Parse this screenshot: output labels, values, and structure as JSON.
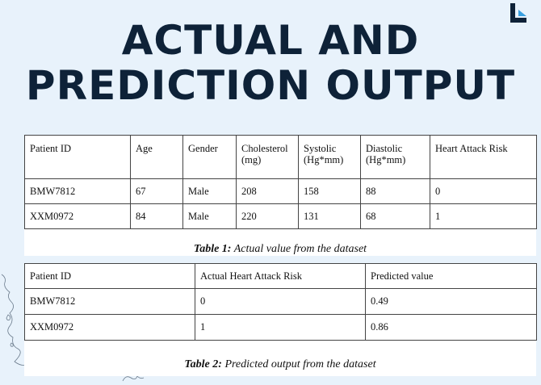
{
  "title_line1": "ACTUAL AND",
  "title_line2": "PREDICTION OUTPUT",
  "colors": {
    "title": "#0e2238",
    "background": "#e8f2fb",
    "logo": "#0e2238",
    "logo_accent": "#3aa0e0"
  },
  "table1": {
    "headers": [
      [
        "Patient ID"
      ],
      [
        "Age"
      ],
      [
        "Gender"
      ],
      [
        "Cholesterol",
        "(mg)"
      ],
      [
        "Systolic",
        "(Hg*mm)"
      ],
      [
        "Diastolic",
        "(Hg*mm)"
      ],
      [
        "Heart Attack Risk"
      ]
    ],
    "rows": [
      [
        "BMW7812",
        "67",
        "Male",
        "208",
        "158",
        "88",
        "0"
      ],
      [
        "XXM0972",
        "84",
        "Male",
        "220",
        "131",
        "68",
        "1"
      ]
    ],
    "caption_label": "Table 1:",
    "caption_text": " Actual value from the dataset"
  },
  "table2": {
    "headers": [
      "Patient ID",
      "Actual Heart Attack Risk",
      "Predicted value"
    ],
    "rows": [
      [
        "BMW7812",
        "0",
        "0.49"
      ],
      [
        "XXM0972",
        "1",
        "0.86"
      ]
    ],
    "caption_label": "Table 2:",
    "caption_text": " Predicted output from the dataset"
  }
}
